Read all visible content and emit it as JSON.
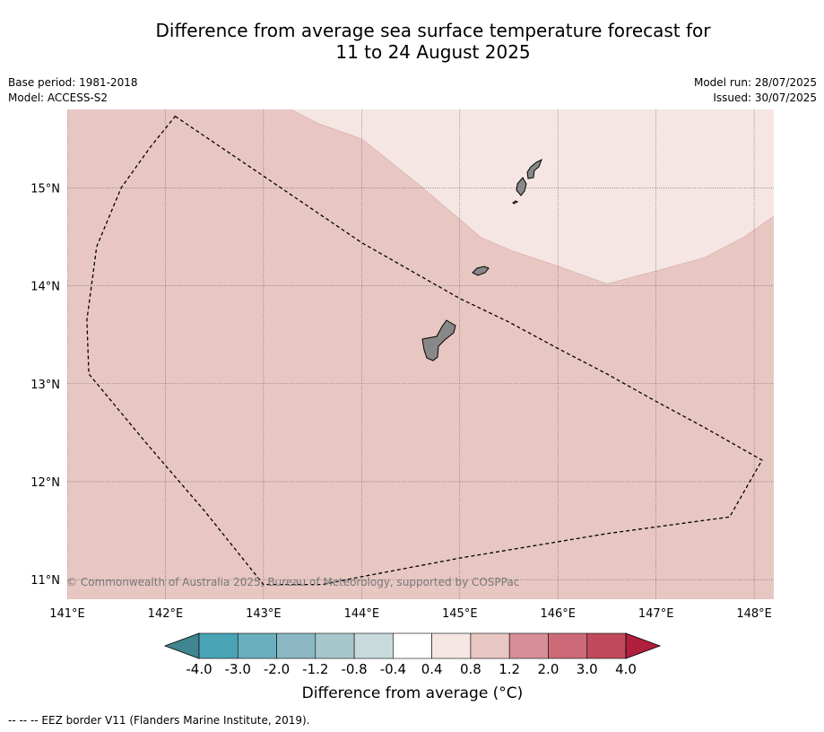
{
  "title_lines": [
    "Difference from average sea surface temperature forecast for",
    "11 to 24 August 2025"
  ],
  "meta_left": [
    "Base period: 1981-2018",
    "Model: ACCESS-S2"
  ],
  "meta_right": [
    "Model run: 28/07/2025",
    "Issued: 30/07/2025"
  ],
  "map": {
    "lon_range": [
      141.0,
      148.2
    ],
    "lat_range": [
      10.8,
      15.8
    ],
    "lon_ticks": [
      {
        "value": 141,
        "label": "141°E"
      },
      {
        "value": 142,
        "label": "142°E"
      },
      {
        "value": 143,
        "label": "143°E"
      },
      {
        "value": 144,
        "label": "144°E"
      },
      {
        "value": 145,
        "label": "145°E"
      },
      {
        "value": 146,
        "label": "146°E"
      },
      {
        "value": 147,
        "label": "147°E"
      },
      {
        "value": 148,
        "label": "148°E"
      }
    ],
    "lat_ticks": [
      {
        "value": 11,
        "label": "11°N"
      },
      {
        "value": 12,
        "label": "12°N"
      },
      {
        "value": 13,
        "label": "13°N"
      },
      {
        "value": 14,
        "label": "14°N"
      },
      {
        "value": 15,
        "label": "15°N"
      }
    ],
    "grid": true,
    "colors": {
      "warm_0.8_1.2": "#e8c7c3",
      "warm_0.4_0.8": "#f5e6e4",
      "land": "#888888",
      "eez": "#000000",
      "grid": "#555555"
    },
    "credit": "© Commonwealth of Australia 2025, Bureau of Meteorology, supported by COSPPac"
  },
  "colorbar": {
    "tick_labels": [
      "-4.0",
      "-3.0",
      "-2.0",
      "-1.2",
      "-0.8",
      "-0.4",
      "0.4",
      "0.8",
      "1.2",
      "2.0",
      "3.0",
      "4.0"
    ],
    "extend_low_color": "#418591",
    "extend_high_color": "#b01f3d",
    "bin_colors": [
      "#48a4b4",
      "#6aafbd",
      "#8ab7c3",
      "#a8c7cb",
      "#c9dadd",
      "#ffffff",
      "#f5e6e4",
      "#e8c7c3",
      "#d88e96",
      "#cd6a78",
      "#c04a5c"
    ],
    "label": "Difference from average (°C)"
  },
  "footnote": "-- -- -- EEZ border V11 (Flanders Marine Institute, 2019)."
}
